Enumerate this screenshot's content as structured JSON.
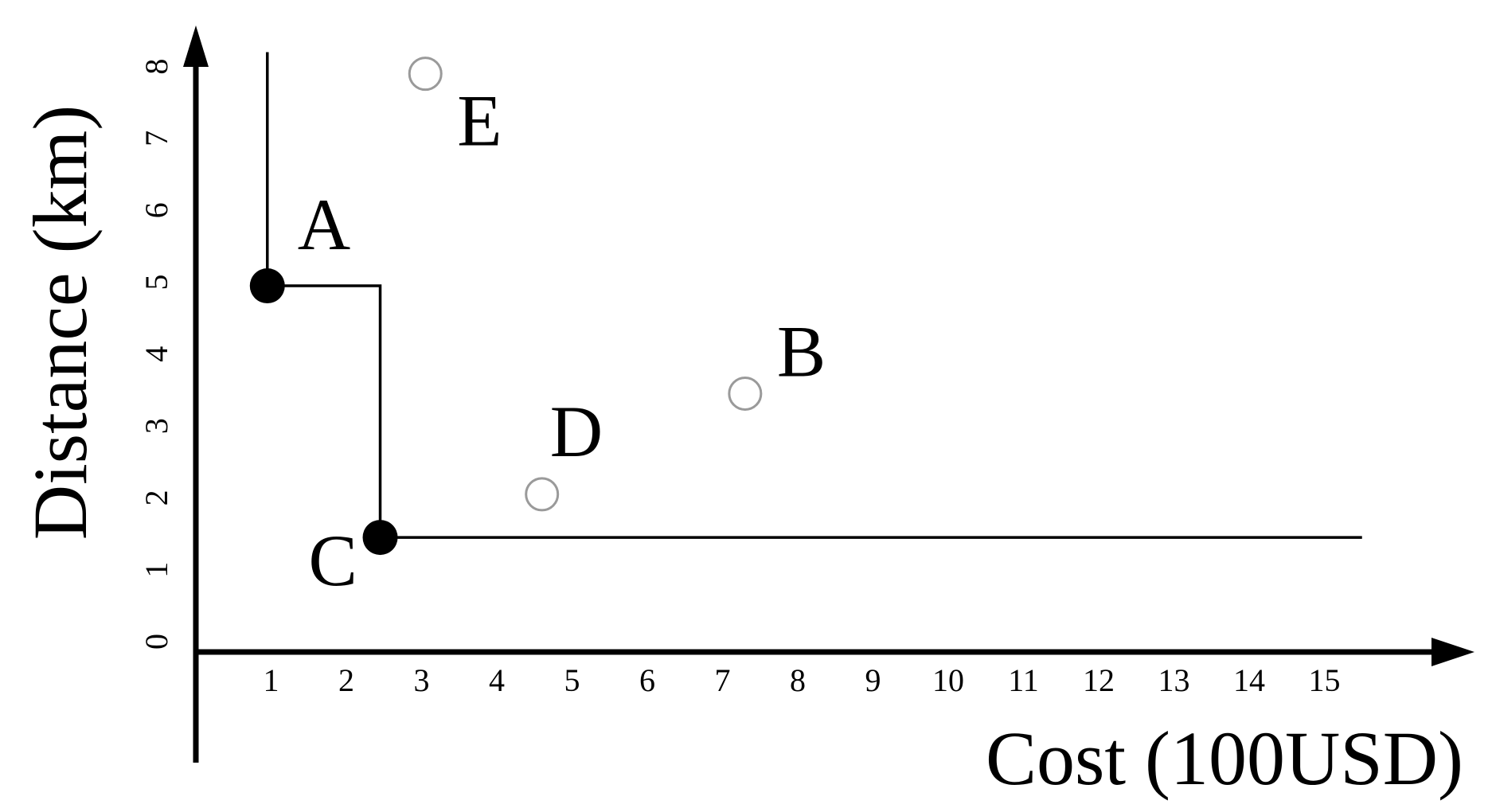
{
  "chart_data": {
    "type": "scatter",
    "xlabel": "Cost (100USD)",
    "ylabel": "Distance (km)",
    "xlim": [
      0,
      16
    ],
    "ylim": [
      0,
      8
    ],
    "x_ticks": [
      1,
      2,
      3,
      4,
      5,
      6,
      7,
      8,
      9,
      10,
      11,
      12,
      13,
      14,
      15
    ],
    "y_ticks": [
      0,
      1,
      2,
      3,
      4,
      5,
      6,
      7,
      8
    ],
    "grid": false,
    "points": [
      {
        "label": "A",
        "x": 0.95,
        "y": 4.95,
        "filled": true
      },
      {
        "label": "B",
        "x": 7.3,
        "y": 3.45,
        "filled": false
      },
      {
        "label": "C",
        "x": 2.45,
        "y": 1.45,
        "filled": true
      },
      {
        "label": "D",
        "x": 4.6,
        "y": 2.05,
        "filled": false
      },
      {
        "label": "E",
        "x": 3.05,
        "y": 7.9,
        "filled": false
      }
    ],
    "pareto_frontier": [
      {
        "x": 0.95,
        "y": 8.2
      },
      {
        "x": 0.95,
        "y": 4.95
      },
      {
        "x": 2.45,
        "y": 4.95
      },
      {
        "x": 2.45,
        "y": 1.45
      },
      {
        "x": 15.5,
        "y": 1.45
      }
    ],
    "colors": {
      "filled": "#000000",
      "open": "#9a9a9a"
    }
  }
}
